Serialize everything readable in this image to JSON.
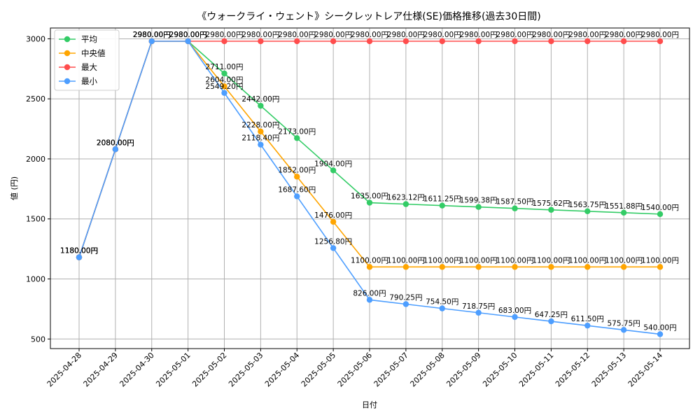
{
  "chart_data": {
    "type": "line",
    "title": "《ウォークライ・ウェント》シークレットレア仕様(SE)価格推移(過去30日間)",
    "xlabel": "日付",
    "ylabel": "値 (円)",
    "ylim": [
      420,
      3090
    ],
    "yticks": [
      500,
      1000,
      1500,
      2000,
      2500,
      3000
    ],
    "ytick_labels": [
      "500",
      "1000",
      "1500",
      "2000",
      "2500",
      "3000"
    ],
    "grid": true,
    "legend_position": "top-left",
    "categories": [
      "2025-04-28",
      "2025-04-29",
      "2025-04-30",
      "2025-05-01",
      "2025-05-02",
      "2025-05-03",
      "2025-05-04",
      "2025-05-05",
      "2025-05-06",
      "2025-05-07",
      "2025-05-08",
      "2025-05-09",
      "2025-05-10",
      "2025-05-11",
      "2025-05-12",
      "2025-05-13",
      "2025-05-14"
    ],
    "series": [
      {
        "name": "平均",
        "color": "#33cc66",
        "values": [
          1180,
          2080,
          2980,
          2980,
          2711,
          2442,
          2173,
          1904,
          1635,
          1623.12,
          1611.25,
          1599.38,
          1587.5,
          1575.62,
          1563.75,
          1551.88,
          1540
        ],
        "labels": [
          "1180.00円",
          "2080.00円",
          "2980.00円",
          "2980.00円",
          "2711.00円",
          "2442.00円",
          "2173.00円",
          "1904.00円",
          "1635.00円",
          "1623.12円",
          "1611.25円",
          "1599.38円",
          "1587.50円",
          "1575.62円",
          "1563.75円",
          "1551.88円",
          "1540.00円"
        ]
      },
      {
        "name": "中央値",
        "color": "#ffa500",
        "values": [
          1180,
          2080,
          2980,
          2980,
          2604,
          2228,
          1852,
          1476,
          1100,
          1100,
          1100,
          1100,
          1100,
          1100,
          1100,
          1100,
          1100
        ],
        "labels": [
          "1180.00円",
          "2080.00円",
          "2980.00円",
          "2980.00円",
          "2604.00円",
          "2228.00円",
          "1852.00円",
          "1476.00円",
          "1100.00円",
          "1100.00円",
          "1100.00円",
          "1100.00円",
          "1100.00円",
          "1100.00円",
          "1100.00円",
          "1100.00円",
          "1100.00円"
        ]
      },
      {
        "name": "最大",
        "color": "#ff4d4d",
        "values": [
          1180,
          2080,
          2980,
          2980,
          2980,
          2980,
          2980,
          2980,
          2980,
          2980,
          2980,
          2980,
          2980,
          2980,
          2980,
          2980,
          2980
        ],
        "labels": [
          "1180.00円",
          "2080.00円",
          "2980.00円",
          "2980.00円",
          "2980.00円",
          "2980.00円",
          "2980.00円",
          "2980.00円",
          "2980.00円",
          "2980.00円",
          "2980.00円",
          "2980.00円",
          "2980.00円",
          "2980.00円",
          "2980.00円",
          "2980.00円",
          "2980.00円"
        ]
      },
      {
        "name": "最小",
        "color": "#4d9eff",
        "values": [
          1180,
          2080,
          2980,
          2980,
          2549.2,
          2118.4,
          1687.6,
          1256.8,
          826,
          790.25,
          754.5,
          718.75,
          683,
          647.25,
          611.5,
          575.75,
          540
        ],
        "labels": [
          "1180.00円",
          "2080.00円",
          "2980.00円",
          "2980.00円",
          "2549.20円",
          "2118.40円",
          "1687.60円",
          "1256.80円",
          "826.00円",
          "790.25円",
          "754.50円",
          "718.75円",
          "683.00円",
          "647.25円",
          "611.50円",
          "575.75円",
          "540.00円"
        ]
      }
    ]
  }
}
